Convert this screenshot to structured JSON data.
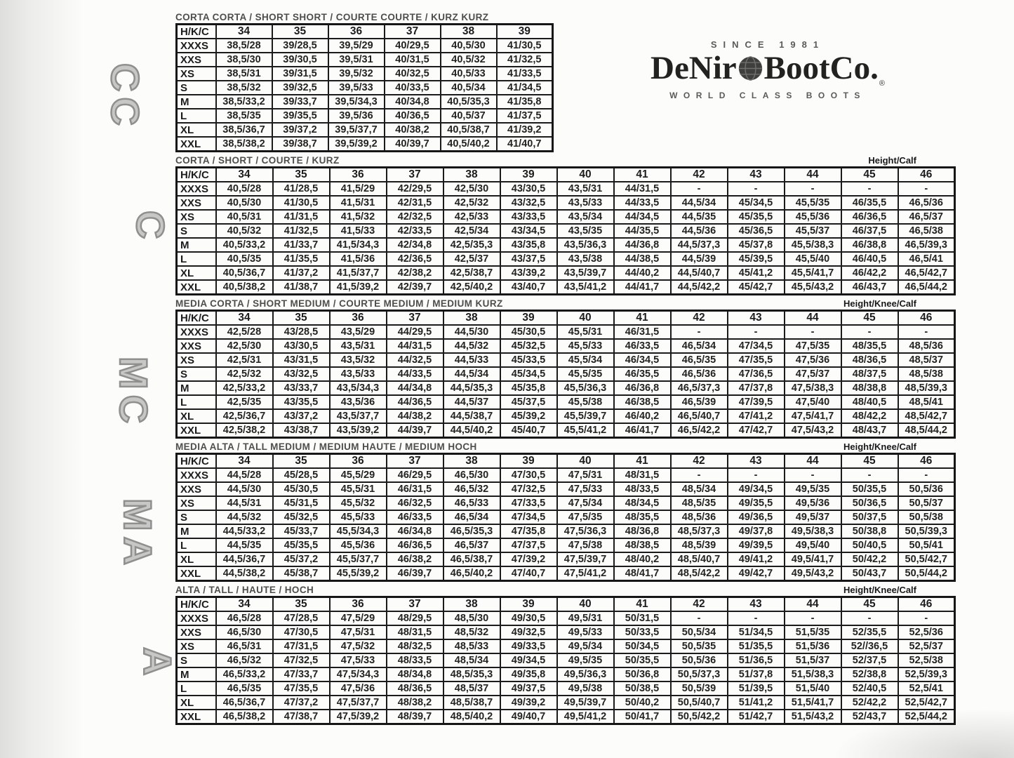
{
  "side_labels": [
    "CC",
    "C",
    "MC",
    "MA",
    "A"
  ],
  "logo": {
    "since": "SINCE 1981",
    "brand_left": "DeNir",
    "brand_right": "BootCo.",
    "registered": "®",
    "tagline": "WORLD CLASS BOOTS",
    "globe_color": "#3f3f3d"
  },
  "tables": [
    {
      "code": "CC",
      "title": "CORTA CORTA / SHORT SHORT / COURTE COURTE / KURZ KURZ",
      "corner_label": "",
      "row_header": "H/K/C",
      "columns": [
        "34",
        "35",
        "36",
        "37",
        "38",
        "39"
      ],
      "rows": [
        {
          "size": "XXXS",
          "cells": [
            "38,5/28",
            "39/28,5",
            "39,5/29",
            "40/29,5",
            "40,5/30",
            "41/30,5"
          ]
        },
        {
          "size": "XXS",
          "cells": [
            "38,5/30",
            "39/30,5",
            "39,5/31",
            "40/31,5",
            "40,5/32",
            "41/32,5"
          ]
        },
        {
          "size": "XS",
          "cells": [
            "38,5/31",
            "39/31,5",
            "39,5/32",
            "40/32,5",
            "40,5/33",
            "41/33,5"
          ]
        },
        {
          "size": "S",
          "cells": [
            "38,5/32",
            "39/32,5",
            "39,5/33",
            "40/33,5",
            "40,5/34",
            "41/34,5"
          ]
        },
        {
          "size": "M",
          "cells": [
            "38,5/33,2",
            "39/33,7",
            "39,5/34,3",
            "40/34,8",
            "40,5/35,3",
            "41/35,8"
          ]
        },
        {
          "size": "L",
          "cells": [
            "38,5/35",
            "39/35,5",
            "39,5/36",
            "40/36,5",
            "40,5/37",
            "41/37,5"
          ]
        },
        {
          "size": "XL",
          "cells": [
            "38,5/36,7",
            "39/37,2",
            "39,5/37,7",
            "40/38,2",
            "40,5/38,7",
            "41/39,2"
          ]
        },
        {
          "size": "XXL",
          "cells": [
            "38,5/38,2",
            "39/38,7",
            "39,5/39,2",
            "40/39,7",
            "40,5/40,2",
            "41/40,7"
          ]
        }
      ]
    },
    {
      "code": "C",
      "title": "CORTA / SHORT / COURTE / KURZ",
      "corner_label": "Height/Calf",
      "row_header": "H/K/C",
      "columns": [
        "34",
        "35",
        "36",
        "37",
        "38",
        "39",
        "40",
        "41",
        "42",
        "43",
        "44",
        "45",
        "46"
      ],
      "rows": [
        {
          "size": "XXXS",
          "cells": [
            "40,5/28",
            "41/28,5",
            "41,5/29",
            "42/29,5",
            "42,5/30",
            "43/30,5",
            "43,5/31",
            "44/31,5",
            "-",
            "-",
            "-",
            "-",
            "-"
          ]
        },
        {
          "size": "XXS",
          "cells": [
            "40,5/30",
            "41/30,5",
            "41,5/31",
            "42/31,5",
            "42,5/32",
            "43/32,5",
            "43,5/33",
            "44/33,5",
            "44,5/34",
            "45/34,5",
            "45,5/35",
            "46/35,5",
            "46,5/36"
          ]
        },
        {
          "size": "XS",
          "cells": [
            "40,5/31",
            "41/31,5",
            "41,5/32",
            "42/32,5",
            "42,5/33",
            "43/33,5",
            "43,5/34",
            "44/34,5",
            "44,5/35",
            "45/35,5",
            "45,5/36",
            "46/36,5",
            "46,5/37"
          ]
        },
        {
          "size": "S",
          "cells": [
            "40,5/32",
            "41/32,5",
            "41,5/33",
            "42/33,5",
            "42,5/34",
            "43/34,5",
            "43,5/35",
            "44/35,5",
            "44,5/36",
            "45/36,5",
            "45,5/37",
            "46/37,5",
            "46,5/38"
          ]
        },
        {
          "size": "M",
          "cells": [
            "40,5/33,2",
            "41/33,7",
            "41,5/34,3",
            "42/34,8",
            "42,5/35,3",
            "43/35,8",
            "43,5/36,3",
            "44/36,8",
            "44,5/37,3",
            "45/37,8",
            "45,5/38,3",
            "46/38,8",
            "46,5/39,3"
          ]
        },
        {
          "size": "L",
          "cells": [
            "40,5/35",
            "41/35,5",
            "41,5/36",
            "42/36,5",
            "42,5/37",
            "43/37,5",
            "43,5/38",
            "44/38,5",
            "44,5/39",
            "45/39,5",
            "45,5/40",
            "46/40,5",
            "46,5/41"
          ]
        },
        {
          "size": "XL",
          "cells": [
            "40,5/36,7",
            "41/37,2",
            "41,5/37,7",
            "42/38,2",
            "42,5/38,7",
            "43/39,2",
            "43,5/39,7",
            "44/40,2",
            "44,5/40,7",
            "45/41,2",
            "45,5/41,7",
            "46/42,2",
            "46,5/42,7"
          ]
        },
        {
          "size": "XXL",
          "cells": [
            "40,5/38,2",
            "41/38,7",
            "41,5/39,2",
            "42/39,7",
            "42,5/40,2",
            "43/40,7",
            "43,5/41,2",
            "44/41,7",
            "44,5/42,2",
            "45/42,7",
            "45,5/43,2",
            "46/43,7",
            "46,5/44,2"
          ]
        }
      ]
    },
    {
      "code": "MC",
      "title": "MEDIA CORTA / SHORT MEDIUM / COURTE MEDIUM / MEDIUM KURZ",
      "corner_label": "Height/Knee/Calf",
      "row_header": "H/K/C",
      "columns": [
        "34",
        "35",
        "36",
        "37",
        "38",
        "39",
        "40",
        "41",
        "42",
        "43",
        "44",
        "45",
        "46"
      ],
      "rows": [
        {
          "size": "XXXS",
          "cells": [
            "42,5/28",
            "43/28,5",
            "43,5/29",
            "44/29,5",
            "44,5/30",
            "45/30,5",
            "45,5/31",
            "46/31,5",
            "-",
            "-",
            "-",
            "-",
            "-"
          ]
        },
        {
          "size": "XXS",
          "cells": [
            "42,5/30",
            "43/30,5",
            "43,5/31",
            "44/31,5",
            "44,5/32",
            "45/32,5",
            "45,5/33",
            "46/33,5",
            "46,5/34",
            "47/34,5",
            "47,5/35",
            "48/35,5",
            "48,5/36"
          ]
        },
        {
          "size": "XS",
          "cells": [
            "42,5/31",
            "43/31,5",
            "43,5/32",
            "44/32,5",
            "44,5/33",
            "45/33,5",
            "45,5/34",
            "46/34,5",
            "46,5/35",
            "47/35,5",
            "47,5/36",
            "48/36,5",
            "48,5/37"
          ]
        },
        {
          "size": "S",
          "cells": [
            "42,5/32",
            "43/32,5",
            "43,5/33",
            "44/33,5",
            "44,5/34",
            "45/34,5",
            "45,5/35",
            "46/35,5",
            "46,5/36",
            "47/36,5",
            "47,5/37",
            "48/37,5",
            "48,5/38"
          ]
        },
        {
          "size": "M",
          "cells": [
            "42,5/33,2",
            "43/33,7",
            "43,5/34,3",
            "44/34,8",
            "44,5/35,3",
            "45/35,8",
            "45,5/36,3",
            "46/36,8",
            "46,5/37,3",
            "47/37,8",
            "47,5/38,3",
            "48/38,8",
            "48,5/39,3"
          ]
        },
        {
          "size": "L",
          "cells": [
            "42,5/35",
            "43/35,5",
            "43,5/36",
            "44/36,5",
            "44,5/37",
            "45/37,5",
            "45,5/38",
            "46/38,5",
            "46,5/39",
            "47/39,5",
            "47,5/40",
            "48/40,5",
            "48,5/41"
          ]
        },
        {
          "size": "XL",
          "cells": [
            "42,5/36,7",
            "43/37,2",
            "43,5/37,7",
            "44/38,2",
            "44,5/38,7",
            "45/39,2",
            "45,5/39,7",
            "46/40,2",
            "46,5/40,7",
            "47/41,2",
            "47,5/41,7",
            "48/42,2",
            "48,5/42,7"
          ]
        },
        {
          "size": "XXL",
          "cells": [
            "42,5/38,2",
            "43/38,7",
            "43,5/39,2",
            "44/39,7",
            "44,5/40,2",
            "45/40,7",
            "45,5/41,2",
            "46/41,7",
            "46,5/42,2",
            "47/42,7",
            "47,5/43,2",
            "48/43,7",
            "48,5/44,2"
          ]
        }
      ]
    },
    {
      "code": "MA",
      "title": "MEDIA ALTA / TALL MEDIUM / MEDIUM HAUTE / MEDIUM HOCH",
      "corner_label": "Height/Knee/Calf",
      "row_header": "H/K/C",
      "columns": [
        "34",
        "35",
        "36",
        "37",
        "38",
        "39",
        "40",
        "41",
        "42",
        "43",
        "44",
        "45",
        "46"
      ],
      "rows": [
        {
          "size": "XXXS",
          "cells": [
            "44,5/28",
            "45/28,5",
            "45,5/29",
            "46/29,5",
            "46,5/30",
            "47/30,5",
            "47,5/31",
            "48/31,5",
            "-",
            "-",
            "-",
            "-",
            "-"
          ]
        },
        {
          "size": "XXS",
          "cells": [
            "44,5/30",
            "45/30,5",
            "45,5/31",
            "46/31,5",
            "46,5/32",
            "47/32,5",
            "47,5/33",
            "48/33,5",
            "48,5/34",
            "49/34,5",
            "49,5/35",
            "50/35,5",
            "50,5/36"
          ]
        },
        {
          "size": "XS",
          "cells": [
            "44,5/31",
            "45/31,5",
            "45,5/32",
            "46/32,5",
            "46,5/33",
            "47/33,5",
            "47,5/34",
            "48/34,5",
            "48,5/35",
            "49/35,5",
            "49,5/36",
            "50/36,5",
            "50,5/37"
          ]
        },
        {
          "size": "S",
          "cells": [
            "44,5/32",
            "45/32,5",
            "45,5/33",
            "46/33,5",
            "46,5/34",
            "47/34,5",
            "47,5/35",
            "48/35,5",
            "48,5/36",
            "49/36,5",
            "49,5/37",
            "50/37,5",
            "50,5/38"
          ]
        },
        {
          "size": "M",
          "cells": [
            "44,5/33,2",
            "45/33,7",
            "45,5/34,3",
            "46/34,8",
            "46,5/35,3",
            "47/35,8",
            "47,5/36,3",
            "48/36,8",
            "48,5/37,3",
            "49/37,8",
            "49,5/38,3",
            "50/38,8",
            "50,5/39,3"
          ]
        },
        {
          "size": "L",
          "cells": [
            "44,5/35",
            "45/35,5",
            "45,5/36",
            "46/36,5",
            "46,5/37",
            "47/37,5",
            "47,5/38",
            "48/38,5",
            "48,5/39",
            "49/39,5",
            "49,5/40",
            "50/40,5",
            "50,5/41"
          ]
        },
        {
          "size": "XL",
          "cells": [
            "44,5/36,7",
            "45/37,2",
            "45,5/37,7",
            "46/38,2",
            "46,5/38,7",
            "47/39,2",
            "47,5/39,7",
            "48/40,2",
            "48,5/40,7",
            "49/41,2",
            "49,5/41,7",
            "50/42,2",
            "50,5/42,7"
          ]
        },
        {
          "size": "XXL",
          "cells": [
            "44,5/38,2",
            "45/38,7",
            "45,5/39,2",
            "46/39,7",
            "46,5/40,2",
            "47/40,7",
            "47,5/41,2",
            "48/41,7",
            "48,5/42,2",
            "49/42,7",
            "49,5/43,2",
            "50/43,7",
            "50,5/44,2"
          ]
        }
      ]
    },
    {
      "code": "A",
      "title": "ALTA / TALL / HAUTE / HOCH",
      "corner_label": "Height/Knee/Calf",
      "row_header": "H/K/C",
      "columns": [
        "34",
        "35",
        "36",
        "37",
        "38",
        "39",
        "40",
        "41",
        "42",
        "43",
        "44",
        "45",
        "46"
      ],
      "rows": [
        {
          "size": "XXXS",
          "cells": [
            "46,5/28",
            "47/28,5",
            "47,5/29",
            "48/29,5",
            "48,5/30",
            "49/30,5",
            "49,5/31",
            "50/31,5",
            "-",
            "-",
            "-",
            "-",
            "-"
          ]
        },
        {
          "size": "XXS",
          "cells": [
            "46,5/30",
            "47/30,5",
            "47,5/31",
            "48/31,5",
            "48,5/32",
            "49/32,5",
            "49,5/33",
            "50/33,5",
            "50,5/34",
            "51/34,5",
            "51,5/35",
            "52/35,5",
            "52,5/36"
          ]
        },
        {
          "size": "XS",
          "cells": [
            "46,5/31",
            "47/31,5",
            "47,5/32",
            "48/32,5",
            "48,5/33",
            "49/33,5",
            "49,5/34",
            "50/34,5",
            "50,5/35",
            "51/35,5",
            "51,5/36",
            "52//36,5",
            "52,5/37"
          ]
        },
        {
          "size": "S",
          "cells": [
            "46,5/32",
            "47/32,5",
            "47,5/33",
            "48/33,5",
            "48,5/34",
            "49/34,5",
            "49,5/35",
            "50/35,5",
            "50,5/36",
            "51/36,5",
            "51,5/37",
            "52/37,5",
            "52,5/38"
          ]
        },
        {
          "size": "M",
          "cells": [
            "46,5/33,2",
            "47/33,7",
            "47,5/34,3",
            "48/34,8",
            "48,5/35,3",
            "49/35,8",
            "49,5/36,3",
            "50/36,8",
            "50,5/37,3",
            "51/37,8",
            "51,5/38,3",
            "52/38,8",
            "52,5/39,3"
          ]
        },
        {
          "size": "L",
          "cells": [
            "46,5/35",
            "47/35,5",
            "47,5/36",
            "48/36,5",
            "48,5/37",
            "49/37,5",
            "49,5/38",
            "50/38,5",
            "50,5/39",
            "51/39,5",
            "51,5/40",
            "52/40,5",
            "52,5/41"
          ]
        },
        {
          "size": "XL",
          "cells": [
            "46,5/36,7",
            "47/37,2",
            "47,5/37,7",
            "48/38,2",
            "48,5/38,7",
            "49/39,2",
            "49,5/39,7",
            "50/40,2",
            "50,5/40,7",
            "51/41,2",
            "51,5/41,7",
            "52/42,2",
            "52,5/42,7"
          ]
        },
        {
          "size": "XXL",
          "cells": [
            "46,5/38,2",
            "47/38,7",
            "47,5/39,2",
            "48/39,7",
            "48,5/40,2",
            "49/40,7",
            "49,5/41,2",
            "50/41,7",
            "50,5/42,2",
            "51/42,7",
            "51,5/43,2",
            "52/43,7",
            "52,5/44,2"
          ]
        }
      ]
    }
  ]
}
